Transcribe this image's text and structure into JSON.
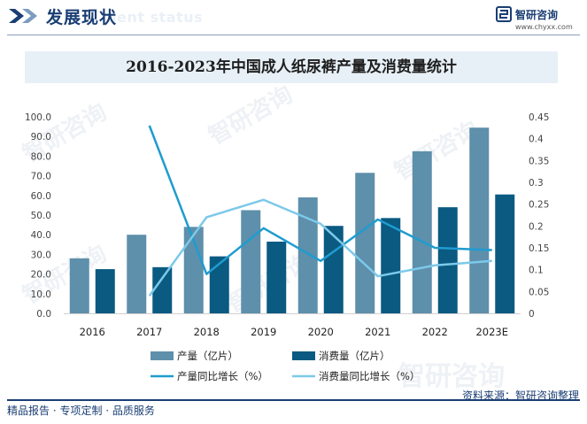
{
  "header": {
    "title": "发展现状",
    "subtitle_watermark": "ment status",
    "brand_name": "智研咨询",
    "brand_url": "www.chyxx.com",
    "watermark_text": "智研咨询",
    "accent_color": "#1a3e73"
  },
  "footer": {
    "left_text": "精品报告 · 专项定制 · 品质服务",
    "source_text": "资料来源：智研咨询整理"
  },
  "chart_data": {
    "type": "bar",
    "title": "2016-2023年中国成人纸尿裤产量及消费量统计",
    "categories": [
      "2016",
      "2017",
      "2018",
      "2019",
      "2020",
      "2021",
      "2022",
      "2023E"
    ],
    "ylim": [
      0,
      100
    ],
    "y_ticks": [
      "100.0",
      "90.0",
      "80.0",
      "70.0",
      "60.0",
      "50.0",
      "40.0",
      "30.0",
      "20.0",
      "10.0",
      "0.0"
    ],
    "y2lim": [
      0,
      0.45
    ],
    "y2_ticks": [
      "0.45",
      "0.4",
      "0.35",
      "0.3",
      "0.25",
      "0.2",
      "0.15",
      "0.1",
      "0.05",
      "0"
    ],
    "series": [
      {
        "name": "产量（亿片）",
        "kind": "bar",
        "axis": "left",
        "color": "#5e8fab",
        "values": [
          28.0,
          40.0,
          44.0,
          52.5,
          59.0,
          71.5,
          82.5,
          94.5
        ]
      },
      {
        "name": "消费量（亿片）",
        "kind": "bar",
        "axis": "left",
        "color": "#0a5a82",
        "values": [
          22.5,
          23.5,
          29.0,
          36.5,
          44.5,
          48.5,
          54.0,
          60.5
        ]
      },
      {
        "name": "产量同比增长（%）",
        "kind": "line",
        "axis": "right",
        "color": "#1f9ccf",
        "values": [
          null,
          0.43,
          0.09,
          0.195,
          0.12,
          0.215,
          0.15,
          0.145
        ]
      },
      {
        "name": "消费量同比增长（%）",
        "kind": "line",
        "axis": "right",
        "color": "#7cc9ea",
        "values": [
          null,
          0.04,
          0.22,
          0.26,
          0.205,
          0.085,
          0.11,
          0.12
        ]
      }
    ],
    "legend_position": "bottom",
    "grid": false
  }
}
